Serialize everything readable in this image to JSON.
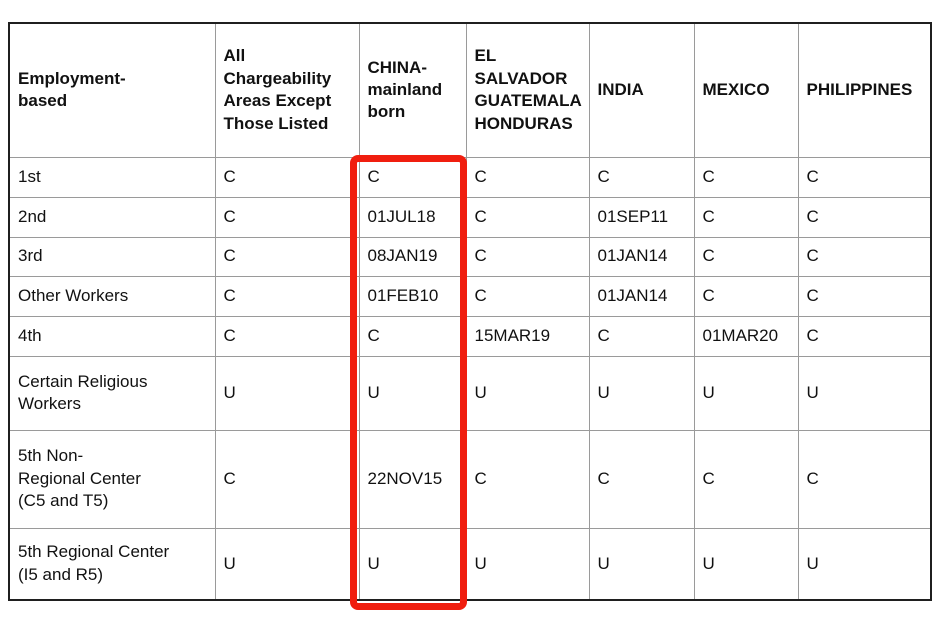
{
  "table": {
    "columns": [
      {
        "label": "Employment-\nbased"
      },
      {
        "label": "All\nChargeability\nAreas Except\nThose Listed"
      },
      {
        "label": "CHINA-\nmainland\nborn"
      },
      {
        "label": "EL\nSALVADOR\nGUATEMALA\nHONDURAS"
      },
      {
        "label": "INDIA"
      },
      {
        "label": "MEXICO"
      },
      {
        "label": "PHILIPPINES"
      }
    ],
    "rows": [
      {
        "label": "1st",
        "values": [
          "C",
          "C",
          "C",
          "C",
          "C",
          "C"
        ]
      },
      {
        "label": "2nd",
        "values": [
          "C",
          "01JUL18",
          "C",
          "01SEP11",
          "C",
          "C"
        ]
      },
      {
        "label": "3rd",
        "values": [
          "C",
          "08JAN19",
          "C",
          "01JAN14",
          "C",
          "C"
        ]
      },
      {
        "label": "Other Workers",
        "values": [
          "C",
          "01FEB10",
          "C",
          "01JAN14",
          "C",
          "C"
        ]
      },
      {
        "label": "4th",
        "values": [
          "C",
          "C",
          "15MAR19",
          "C",
          "01MAR20",
          "C"
        ]
      },
      {
        "label": "Certain Religious\nWorkers",
        "values": [
          "U",
          "U",
          "U",
          "U",
          "U",
          "U"
        ]
      },
      {
        "label": "5th Non-\nRegional Center\n(C5 and T5)",
        "values": [
          "C",
          "22NOV15",
          "C",
          "C",
          "C",
          "C"
        ]
      },
      {
        "label": "5th Regional Center\n(I5 and R5)",
        "values": [
          "U",
          "U",
          "U",
          "U",
          "U",
          "U"
        ]
      }
    ]
  },
  "highlight": {
    "color": "#f01e0f",
    "highlighted_column": "CHINA-mainland born"
  }
}
